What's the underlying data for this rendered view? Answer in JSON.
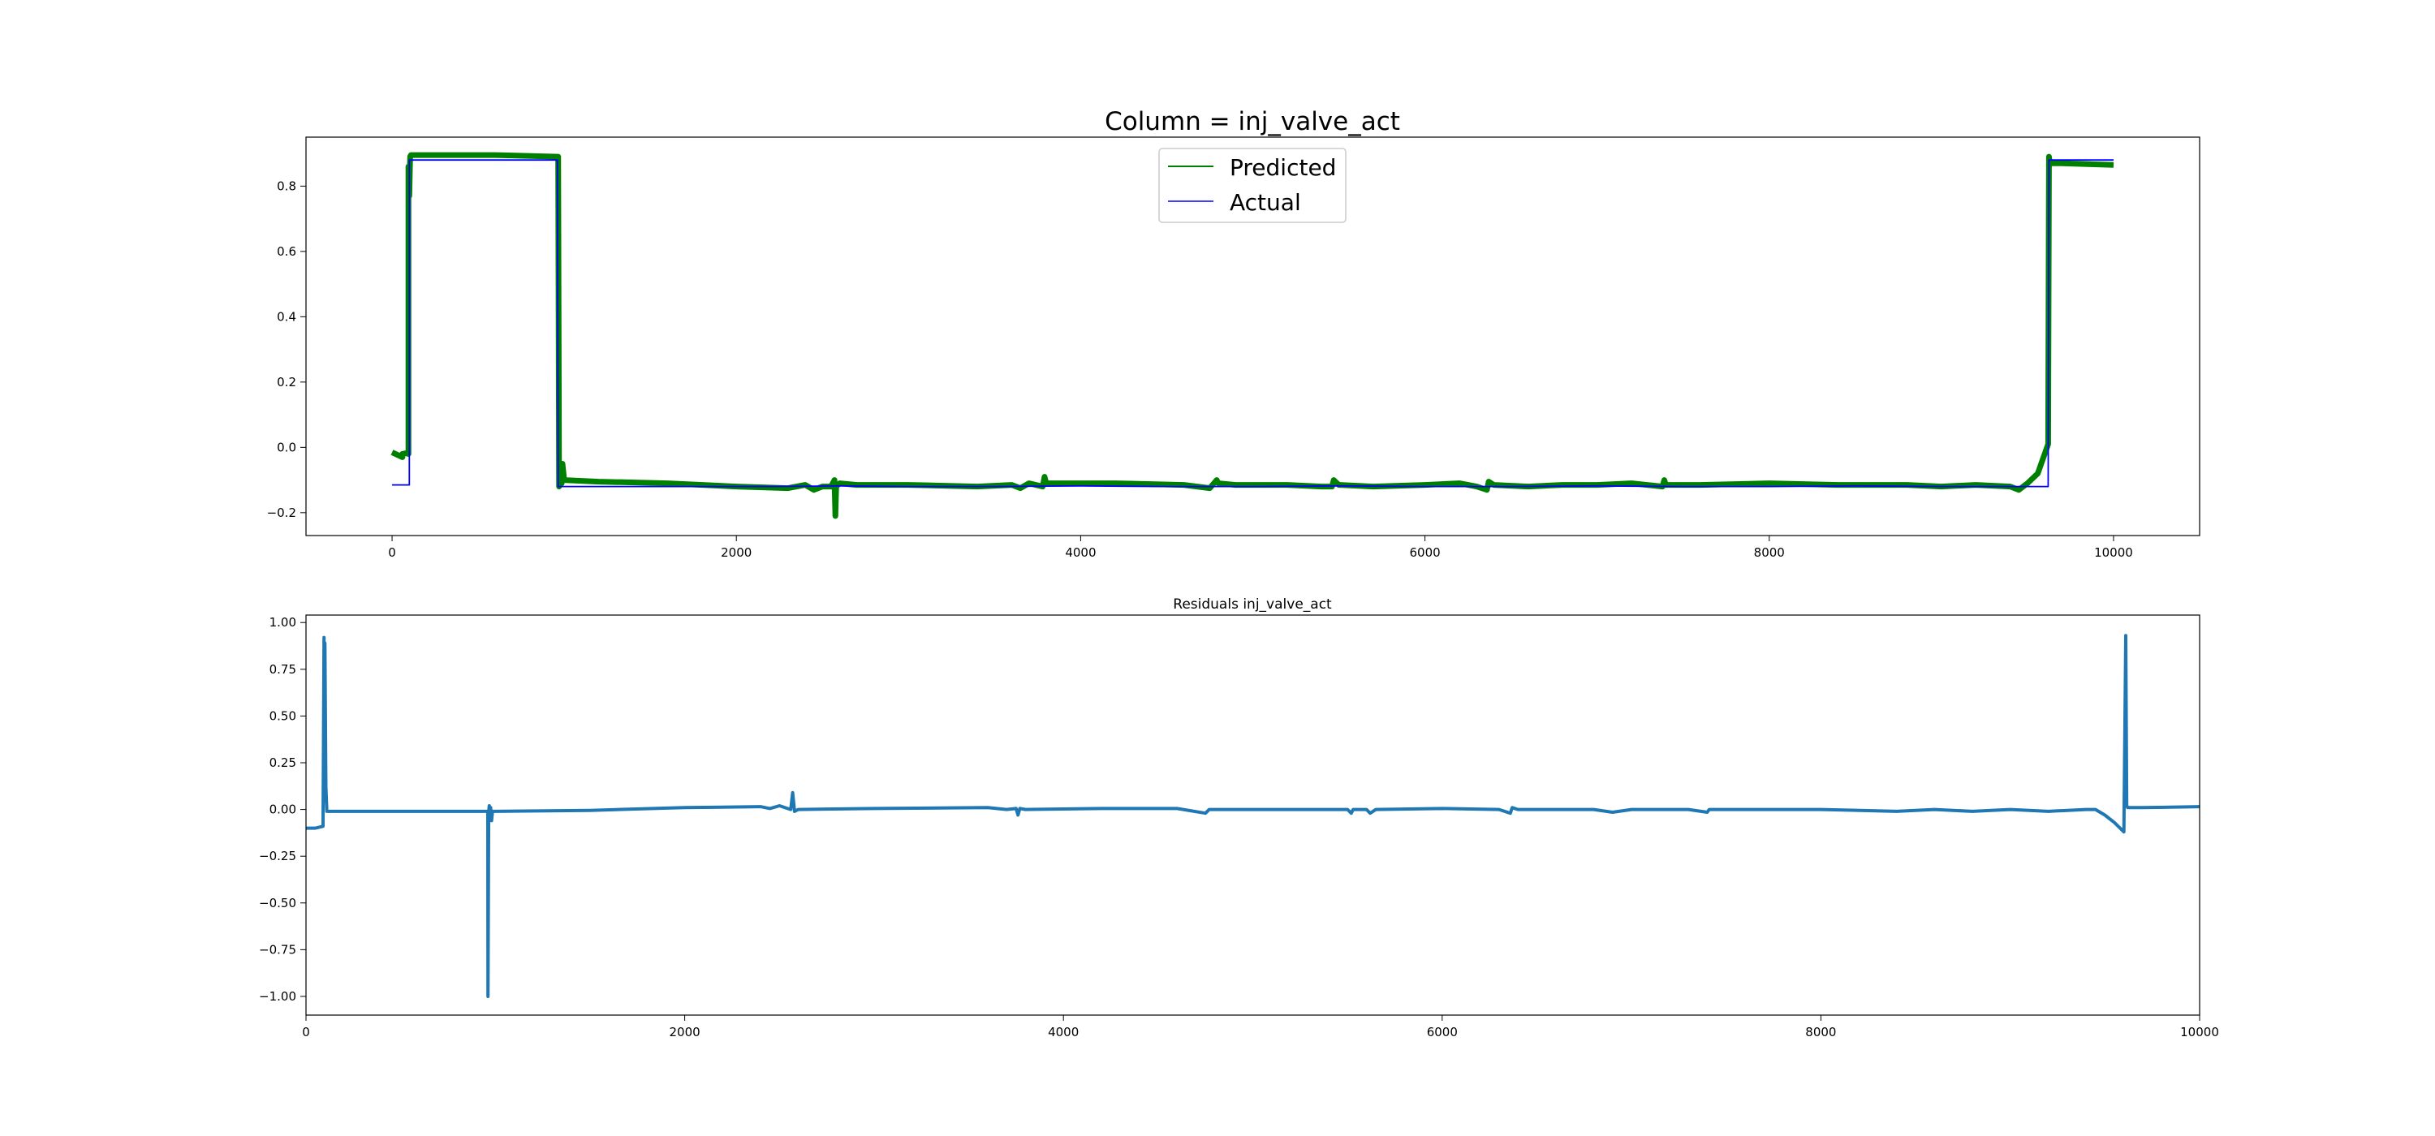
{
  "chart_data": [
    {
      "type": "line",
      "title": "Column = inj_valve_act",
      "xlabel": "",
      "ylabel": "",
      "xlim": [
        -500,
        10500
      ],
      "ylim": [
        -0.27,
        0.95
      ],
      "xticks": [
        0,
        2000,
        4000,
        6000,
        8000,
        10000
      ],
      "xtick_labels": [
        "0",
        "2000",
        "4000",
        "6000",
        "8000",
        "10000"
      ],
      "yticks": [
        -0.2,
        0.0,
        0.2,
        0.4,
        0.6,
        0.8
      ],
      "ytick_labels": [
        "−0.2",
        "0.0",
        "0.2",
        "0.4",
        "0.6",
        "0.8"
      ],
      "grid": false,
      "legend": {
        "position": "top-center"
      },
      "series": [
        {
          "name": "Predicted",
          "color": "#008000",
          "x": [
            0,
            60,
            60,
            80,
            95,
            95,
            100,
            105,
            110,
            350,
            600,
            960,
            965,
            970,
            975,
            985,
            990,
            1000,
            1200,
            1600,
            2000,
            2300,
            2400,
            2450,
            2500,
            2550,
            2570,
            2575,
            2580,
            2600,
            2700,
            3000,
            3400,
            3600,
            3650,
            3700,
            3780,
            3790,
            3800,
            4200,
            4600,
            4750,
            4790,
            4800,
            4900,
            5200,
            5400,
            5460,
            5470,
            5500,
            5700,
            6000,
            6200,
            6300,
            6360,
            6370,
            6400,
            6600,
            6800,
            7000,
            7200,
            7380,
            7390,
            7400,
            7600,
            8000,
            8400,
            8800,
            9000,
            9200,
            9400,
            9450,
            9500,
            9560,
            9620,
            9625,
            9630,
            9700,
            10000
          ],
          "y": [
            -0.015,
            -0.03,
            -0.02,
            -0.018,
            -0.02,
            0.86,
            0.77,
            0.89,
            0.895,
            0.895,
            0.895,
            0.89,
            0.89,
            -0.12,
            -0.09,
            -0.11,
            -0.05,
            -0.1,
            -0.105,
            -0.11,
            -0.12,
            -0.125,
            -0.115,
            -0.13,
            -0.12,
            -0.12,
            -0.1,
            -0.21,
            -0.12,
            -0.11,
            -0.115,
            -0.115,
            -0.12,
            -0.115,
            -0.125,
            -0.11,
            -0.12,
            -0.09,
            -0.11,
            -0.11,
            -0.115,
            -0.125,
            -0.1,
            -0.11,
            -0.115,
            -0.115,
            -0.12,
            -0.12,
            -0.1,
            -0.115,
            -0.12,
            -0.115,
            -0.11,
            -0.12,
            -0.13,
            -0.105,
            -0.115,
            -0.12,
            -0.115,
            -0.115,
            -0.11,
            -0.12,
            -0.1,
            -0.115,
            -0.115,
            -0.11,
            -0.115,
            -0.115,
            -0.12,
            -0.115,
            -0.12,
            -0.13,
            -0.11,
            -0.08,
            0.01,
            0.89,
            0.87,
            0.87,
            0.865
          ]
        },
        {
          "name": "Actual",
          "color": "#0000ff",
          "x": [
            0,
            100,
            100,
            960,
            965,
            1000,
            1400,
            1800,
            2200,
            2600,
            3000,
            3500,
            4000,
            4500,
            5000,
            5500,
            6000,
            6500,
            7000,
            7500,
            8000,
            8500,
            9000,
            9500,
            9620,
            9625,
            10000
          ],
          "y": [
            -0.115,
            -0.115,
            0.88,
            0.88,
            -0.12,
            -0.12,
            -0.12,
            -0.12,
            -0.12,
            -0.118,
            -0.12,
            -0.12,
            -0.118,
            -0.12,
            -0.12,
            -0.118,
            -0.12,
            -0.12,
            -0.118,
            -0.12,
            -0.12,
            -0.118,
            -0.12,
            -0.12,
            -0.12,
            0.88,
            0.88
          ]
        }
      ]
    },
    {
      "type": "line",
      "title": "Residuals inj_valve_act",
      "xlabel": "",
      "ylabel": "",
      "xlim": [
        0,
        10000
      ],
      "ylim": [
        -1.1,
        1.04
      ],
      "xticks": [
        0,
        2000,
        4000,
        6000,
        8000,
        10000
      ],
      "xtick_labels": [
        "0",
        "2000",
        "4000",
        "6000",
        "8000",
        "10000"
      ],
      "yticks": [
        -1.0,
        -0.75,
        -0.5,
        -0.25,
        0.0,
        0.25,
        0.5,
        0.75,
        1.0
      ],
      "ytick_labels": [
        "−1.00",
        "−0.75",
        "−0.50",
        "−0.25",
        "0.00",
        "0.25",
        "0.50",
        "0.75",
        "1.00"
      ],
      "grid": false,
      "series": [
        {
          "color": "#1f77b4",
          "x": [
            0,
            50,
            90,
            95,
            96,
            100,
            105,
            110,
            115,
            130,
            400,
            700,
            960,
            961,
            965,
            968,
            970,
            975,
            980,
            985,
            1000,
            1500,
            2000,
            2400,
            2450,
            2500,
            2560,
            2570,
            2580,
            2600,
            3000,
            3600,
            3700,
            3750,
            3760,
            3770,
            3800,
            4200,
            4600,
            4750,
            4770,
            4800,
            5200,
            5500,
            5520,
            5530,
            5600,
            5620,
            5650,
            6000,
            6300,
            6360,
            6370,
            6400,
            6800,
            6900,
            7000,
            7300,
            7400,
            7410,
            7500,
            8000,
            8400,
            8600,
            8800,
            9000,
            9200,
            9400,
            9450,
            9500,
            9550,
            9600,
            9610,
            9615,
            9620,
            9625,
            9700,
            10000
          ],
          "y": [
            -0.1,
            -0.1,
            -0.09,
            0.92,
            0.05,
            0.89,
            0.12,
            -0.01,
            -0.01,
            -0.01,
            -0.01,
            -0.01,
            -0.01,
            -1.0,
            -0.01,
            0.02,
            -0.05,
            0.01,
            -0.06,
            -0.01,
            -0.01,
            -0.005,
            0.01,
            0.015,
            0.005,
            0.02,
            0.0,
            0.09,
            -0.01,
            0.0,
            0.005,
            0.01,
            0.0,
            0.005,
            -0.03,
            0.005,
            0.0,
            0.005,
            0.005,
            -0.02,
            0.0,
            0.0,
            0.0,
            0.0,
            -0.02,
            0.0,
            0.0,
            -0.02,
            0.0,
            0.005,
            0.0,
            -0.02,
            0.01,
            0.0,
            0.0,
            -0.015,
            0.0,
            0.0,
            -0.015,
            0.0,
            0.0,
            0.0,
            -0.01,
            0.0,
            -0.01,
            0.0,
            -0.01,
            0.0,
            0.0,
            -0.03,
            -0.07,
            -0.12,
            0.93,
            0.02,
            0.01,
            0.01,
            0.01,
            0.015
          ]
        }
      ]
    }
  ]
}
